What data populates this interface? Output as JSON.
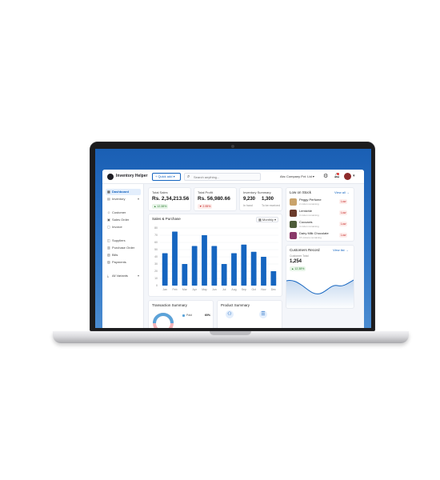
{
  "app": {
    "brand": "Inventory Helper",
    "quick_add": "+ Quick add  ▾",
    "search_placeholder": "Search anything...",
    "company": "Abc Company Pvt. Ltd",
    "company_chevron": "▾"
  },
  "sidebar": {
    "items": [
      {
        "label": "Dashboard"
      },
      {
        "label": "Inventory"
      },
      {
        "label": "Customer"
      },
      {
        "label": "Sales Order"
      },
      {
        "label": "Invoice"
      },
      {
        "label": "Suppliers"
      },
      {
        "label": "Purchase Order"
      },
      {
        "label": "Bills"
      },
      {
        "label": "Payments"
      },
      {
        "label": "All Variants"
      }
    ]
  },
  "kpis": {
    "total_sales": {
      "label": "Total Sales",
      "value": "Rs. 2,34,213.56",
      "change": "▲ 12.38%"
    },
    "total_profit": {
      "label": "Total Profit",
      "value": "Rs. 56,980.66",
      "change": "▼ 2.95%"
    },
    "inventory_summary": {
      "label": "Inventory Summary",
      "in_hand_value": "9,230",
      "in_hand_label": "In hand",
      "to_receive_value": "1,300",
      "to_receive_label": "To be received"
    }
  },
  "low_stock": {
    "title": "Low on Stock",
    "view_all": "View all →",
    "items": [
      {
        "name": "Peggy Perfume",
        "remaining": "2 cotton remaining",
        "badge": "Low",
        "color": "#c9a36b"
      },
      {
        "name": "Lemichie",
        "remaining": "3 cotton remaining",
        "badge": "Low",
        "color": "#6b3b2b"
      },
      {
        "name": "Cocoaxis",
        "remaining": "4 cotton remaining",
        "badge": "Low",
        "color": "#4e5d3a"
      },
      {
        "name": "Dairy Milk Chocolate",
        "remaining": "15 cottons remaining",
        "badge": "Low",
        "color": "#8a3a6a"
      }
    ]
  },
  "customers": {
    "title": "Customers Record",
    "view_all": "View list →",
    "sub": "Customer Total",
    "value": "1,254",
    "change": "▲ 12.38%"
  },
  "sales_chart": {
    "title": "Sales & Purchase",
    "period": "Monthly ▾"
  },
  "transaction": {
    "title": "Transaction Summary",
    "legend_label": "Paid",
    "legend_value": "60%"
  },
  "product_summary": {
    "title": "Product Summary"
  },
  "chart_data": {
    "type": "bar",
    "categories": [
      "Jan",
      "Feb",
      "Mar",
      "Apr",
      "May",
      "Jun",
      "Jul",
      "Aug",
      "Sep",
      "Oct",
      "Nov",
      "Dec"
    ],
    "values": [
      45,
      75,
      30,
      55,
      70,
      55,
      30,
      45,
      57,
      47,
      40,
      20
    ],
    "yticks": [
      "80",
      "70",
      "60",
      "50",
      "40",
      "30",
      "20",
      "10",
      "0"
    ],
    "ylim": [
      0,
      80
    ],
    "colors": {
      "bar": "#1565c0",
      "grid": "#eef0f4"
    }
  },
  "colors": {
    "accent": "#1565c0",
    "screen_bg": "#1a5fb4"
  }
}
